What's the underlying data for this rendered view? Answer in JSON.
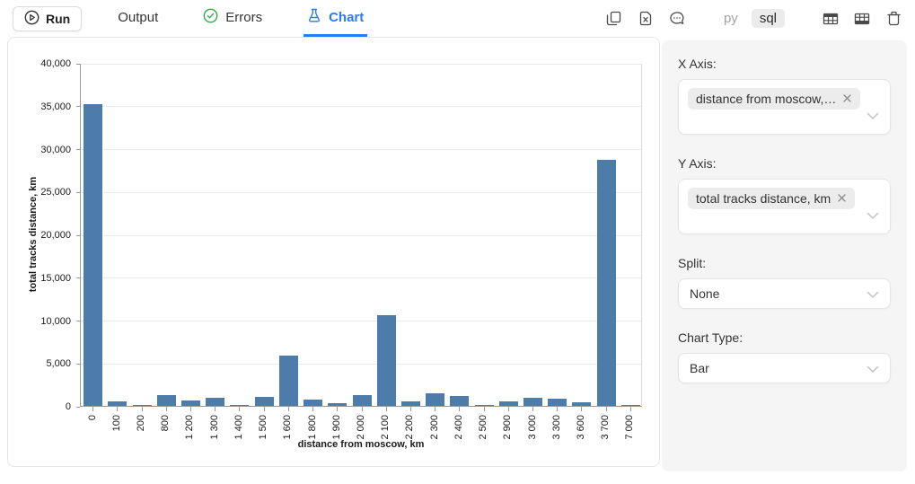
{
  "toolbar": {
    "run": {
      "label": "Run"
    },
    "tabs": [
      {
        "id": "output",
        "label": "Output",
        "active": false
      },
      {
        "id": "errors",
        "label": "Errors",
        "icon": "check-circle",
        "active": false
      },
      {
        "id": "chart",
        "label": "Chart",
        "icon": "flask",
        "active": true
      }
    ],
    "language_toggle": {
      "options": [
        "py",
        "sql"
      ],
      "selected": "sql"
    },
    "icons": [
      "copy",
      "export-file",
      "comments",
      "table-header",
      "table-footer",
      "trash"
    ],
    "accent_color": "#2b7bf6",
    "success_color": "#3aa74f"
  },
  "chart_data": {
    "type": "bar",
    "xlabel": "distance from moscow, km",
    "ylabel": "total tracks distance, km",
    "categories": [
      "0",
      "100",
      "200",
      "800",
      "1 200",
      "1 300",
      "1 400",
      "1 500",
      "1 600",
      "1 800",
      "1 900",
      "2 000",
      "2 100",
      "2 200",
      "2 300",
      "2 400",
      "2 500",
      "2 900",
      "3 000",
      "3 300",
      "3 600",
      "3 700",
      "7 000"
    ],
    "values": [
      35200,
      500,
      60,
      1250,
      650,
      950,
      150,
      1100,
      5900,
      700,
      300,
      1300,
      10600,
      550,
      1500,
      1200,
      80,
      550,
      900,
      850,
      400,
      28700,
      150
    ],
    "ylim": [
      0,
      40000
    ],
    "ytick_step": 5000,
    "grid": true,
    "legend": "none",
    "bar_color": "#4d7cab"
  },
  "panel": {
    "x_axis": {
      "label": "X Axis:",
      "tag": "distance from moscow,…"
    },
    "y_axis": {
      "label": "Y Axis:",
      "tag": "total tracks distance, km"
    },
    "split": {
      "label": "Split:",
      "value": "None"
    },
    "chart_type": {
      "label": "Chart Type:",
      "value": "Bar"
    }
  }
}
